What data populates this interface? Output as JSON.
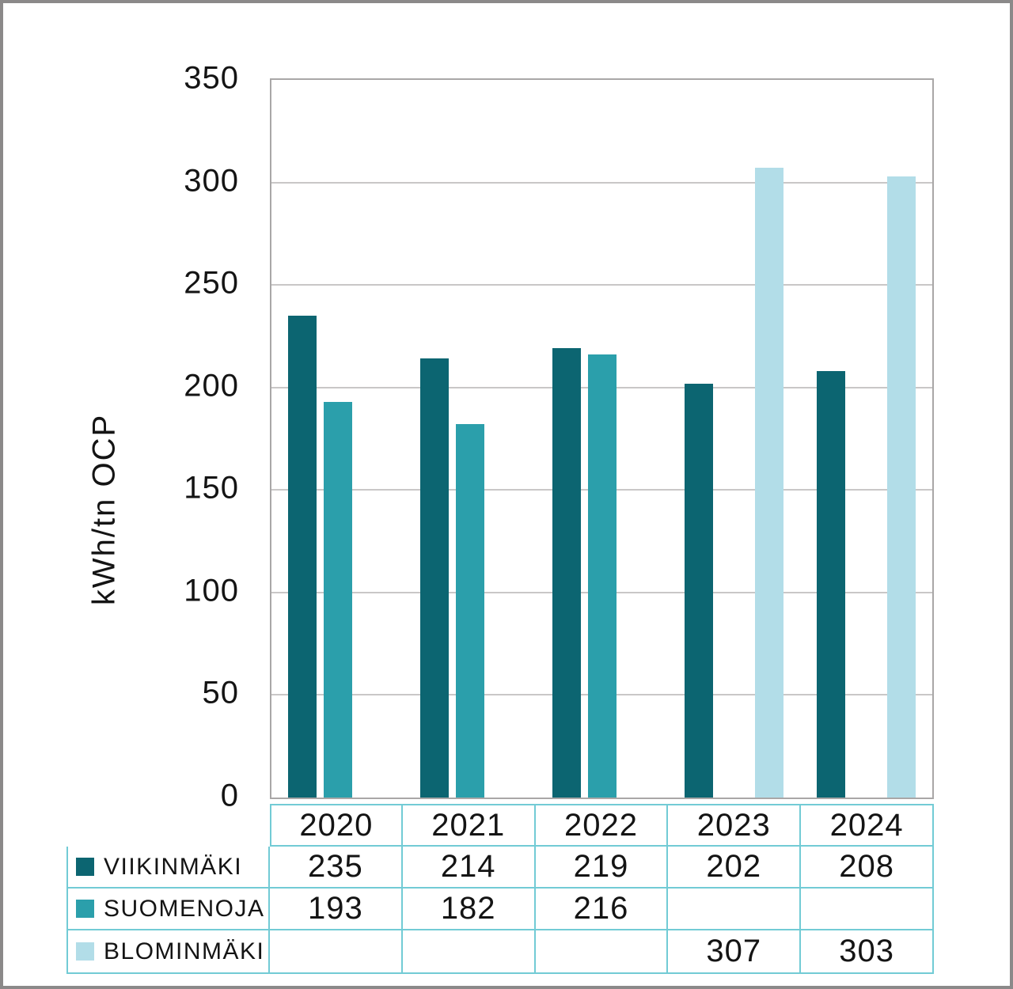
{
  "chart_data": {
    "type": "bar",
    "categories": [
      "2020",
      "2021",
      "2022",
      "2023",
      "2024"
    ],
    "series": [
      {
        "name": "VIIKINMÄKI",
        "key": "viikinmaki",
        "color": "#0c6571",
        "values": [
          235,
          214,
          219,
          202,
          208
        ]
      },
      {
        "name": "SUOMENOJA",
        "key": "suomenoja",
        "color": "#2b9fab",
        "values": [
          193,
          182,
          216,
          null,
          null
        ]
      },
      {
        "name": "BLOMINMÄKI",
        "key": "blominmaki",
        "color": "#b2dde8",
        "values": [
          null,
          null,
          null,
          307,
          303
        ]
      }
    ],
    "title": "",
    "xlabel": "",
    "ylabel": "kWh/tn OCP",
    "ylim": [
      0,
      350
    ],
    "ytick_step": 50,
    "grid": true,
    "legend_position": "table-left"
  },
  "colors": {
    "outer_border": "#8b8989",
    "plot_border": "#a9a7a7",
    "gridline": "#c9c7c7",
    "table_border": "#72cbd5",
    "series_dark": "#0c6571",
    "series_mid": "#2b9fab",
    "series_light": "#b2dde8"
  }
}
